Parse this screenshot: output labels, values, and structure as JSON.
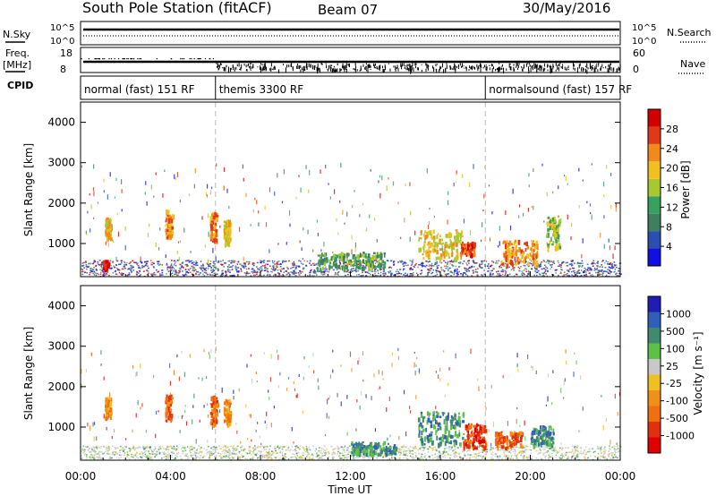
{
  "header": {
    "station": "South Pole Station (fitACF)",
    "beam": "Beam 07",
    "date": "30/May/2016"
  },
  "summary": {
    "nsky_label": "N.Sky",
    "nsearch_label": "N.Search",
    "noise_ticks": [
      "10^5",
      "10^0"
    ],
    "freq_label_1": "Freq.",
    "freq_label_2": "[MHz]",
    "freq_ticks": [
      "18",
      "8"
    ],
    "nave_label": "Nave",
    "nave_ticks": [
      "60",
      "0"
    ],
    "cpid_label": "CPID",
    "cpid_segments": [
      {
        "label": "normal (fast) 151 RF",
        "start_hour": 0
      },
      {
        "label": "themis 3300 RF",
        "start_hour": 6
      },
      {
        "label": "normalsound (fast) 157 RF",
        "start_hour": 18
      }
    ]
  },
  "colors": {
    "power_scale": [
      "#1010e0",
      "#2a4fb0",
      "#3f7f5f",
      "#3aa060",
      "#a8c830",
      "#f0c020",
      "#f08a18",
      "#e03818",
      "#d40000"
    ],
    "velocity_scale": [
      "#1e1eb4",
      "#2f5fb8",
      "#3f8a70",
      "#5fc048",
      "#c8c8c8",
      "#f0c020",
      "#f09018",
      "#f07010",
      "#e03010",
      "#e00000"
    ]
  },
  "chart_data": [
    {
      "type": "heatmap",
      "xlabel": "",
      "ylabel": "Slant Range [km]",
      "xlim": [
        0,
        24
      ],
      "ylim": [
        180,
        4500
      ],
      "yticks": [
        "1000",
        "2000",
        "3000",
        "4000"
      ],
      "colorbar_label": "Power [dB]",
      "colorbar_ticks": [
        "4",
        "8",
        "12",
        "16",
        "20",
        "24",
        "28"
      ],
      "patches": [
        {
          "x": 1.1,
          "y": 500,
          "w": 0.25,
          "h": 200,
          "level": 8
        },
        {
          "x": 1.2,
          "y": 1400,
          "w": 0.25,
          "h": 500,
          "level": 5
        },
        {
          "x": 3.9,
          "y": 1500,
          "w": 0.3,
          "h": 700,
          "level": 6
        },
        {
          "x": 5.9,
          "y": 1450,
          "w": 0.3,
          "h": 700,
          "level": 6
        },
        {
          "x": 6.5,
          "y": 1300,
          "w": 0.3,
          "h": 600,
          "level": 5
        },
        {
          "x": 16.0,
          "y": 1000,
          "w": 2.0,
          "h": 700,
          "level": 5
        },
        {
          "x": 17.2,
          "y": 900,
          "w": 0.6,
          "h": 300,
          "level": 7
        },
        {
          "x": 19.5,
          "y": 800,
          "w": 1.6,
          "h": 600,
          "level": 6
        },
        {
          "x": 21.0,
          "y": 1300,
          "w": 0.6,
          "h": 800,
          "level": 4
        },
        {
          "x": 12.0,
          "y": 600,
          "w": 3.0,
          "h": 400,
          "level": 3
        }
      ]
    },
    {
      "type": "heatmap",
      "xlabel": "Time UT",
      "ylabel": "Slant Range [km]",
      "xlim": [
        0,
        24
      ],
      "ylim": [
        180,
        4500
      ],
      "xticks": [
        "00:00",
        "04:00",
        "08:00",
        "12:00",
        "16:00",
        "20:00",
        "00:00"
      ],
      "yticks": [
        "1000",
        "2000",
        "3000",
        "4000"
      ],
      "colorbar_label": "Velocity [m s⁻¹]",
      "colorbar_ticks": [
        "1000",
        "500",
        "100",
        "25",
        "-25",
        "-100",
        "-500",
        "-1000"
      ],
      "patches": [
        {
          "x": 1.2,
          "y": 1500,
          "w": 0.25,
          "h": 500,
          "level": 6
        },
        {
          "x": 3.9,
          "y": 1500,
          "w": 0.3,
          "h": 700,
          "level": 7
        },
        {
          "x": 5.9,
          "y": 1450,
          "w": 0.3,
          "h": 700,
          "level": 7
        },
        {
          "x": 6.5,
          "y": 1400,
          "w": 0.3,
          "h": 600,
          "level": 6
        },
        {
          "x": 16.0,
          "y": 1000,
          "w": 2.0,
          "h": 800,
          "level": 2
        },
        {
          "x": 17.5,
          "y": 800,
          "w": 1.0,
          "h": 600,
          "level": 8
        },
        {
          "x": 19.0,
          "y": 700,
          "w": 1.2,
          "h": 400,
          "level": 7
        },
        {
          "x": 20.5,
          "y": 800,
          "w": 1.0,
          "h": 500,
          "level": 2
        },
        {
          "x": 13.0,
          "y": 500,
          "w": 2.0,
          "h": 300,
          "level": 2
        }
      ]
    }
  ]
}
